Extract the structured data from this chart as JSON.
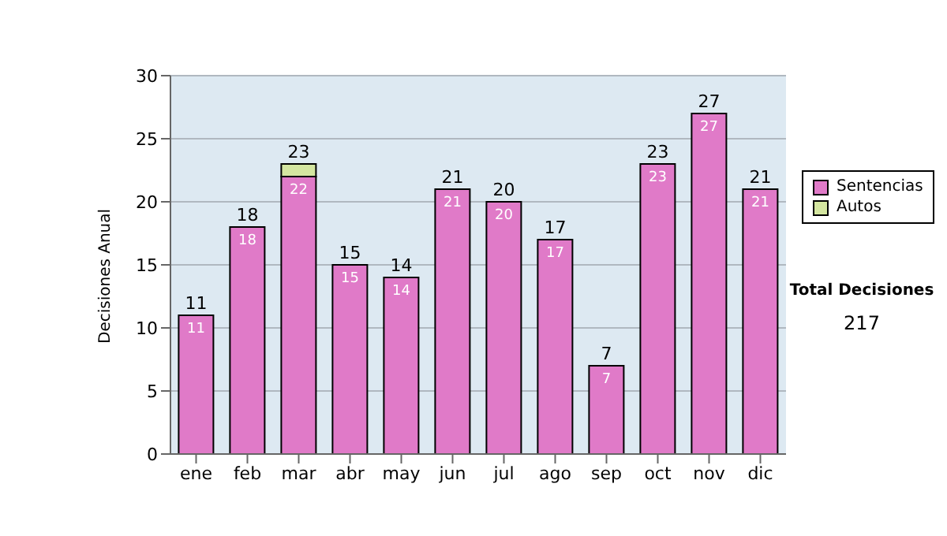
{
  "chart_data": {
    "type": "bar",
    "ylabel": "Decisiones Anual",
    "categories": [
      "ene",
      "feb",
      "mar",
      "abr",
      "may",
      "jun",
      "jul",
      "ago",
      "sep",
      "oct",
      "nov",
      "dic"
    ],
    "stacked": true,
    "series": [
      {
        "name": "Sentencias",
        "color": "#e07ac8",
        "values": [
          11,
          18,
          22,
          15,
          14,
          21,
          20,
          17,
          7,
          23,
          27,
          21
        ],
        "value_labels": [
          "11",
          "18",
          "22",
          "15",
          "14",
          "21",
          "20",
          "17",
          "7",
          "23",
          "27",
          "21"
        ]
      },
      {
        "name": "Autos",
        "color": "#d4e6a0",
        "values": [
          0,
          0,
          1,
          0,
          0,
          0,
          0,
          0,
          0,
          0,
          0,
          0
        ]
      }
    ],
    "totals": [
      "11",
      "18",
      "23",
      "15",
      "14",
      "21",
      "20",
      "17",
      "7",
      "23",
      "27",
      "21"
    ],
    "ylim": [
      0,
      30
    ],
    "yticks": [
      0,
      5,
      10,
      15,
      20,
      25,
      30
    ],
    "grid": "y",
    "legend": "right",
    "annotations": [
      "Total Decisiones",
      "217"
    ]
  }
}
